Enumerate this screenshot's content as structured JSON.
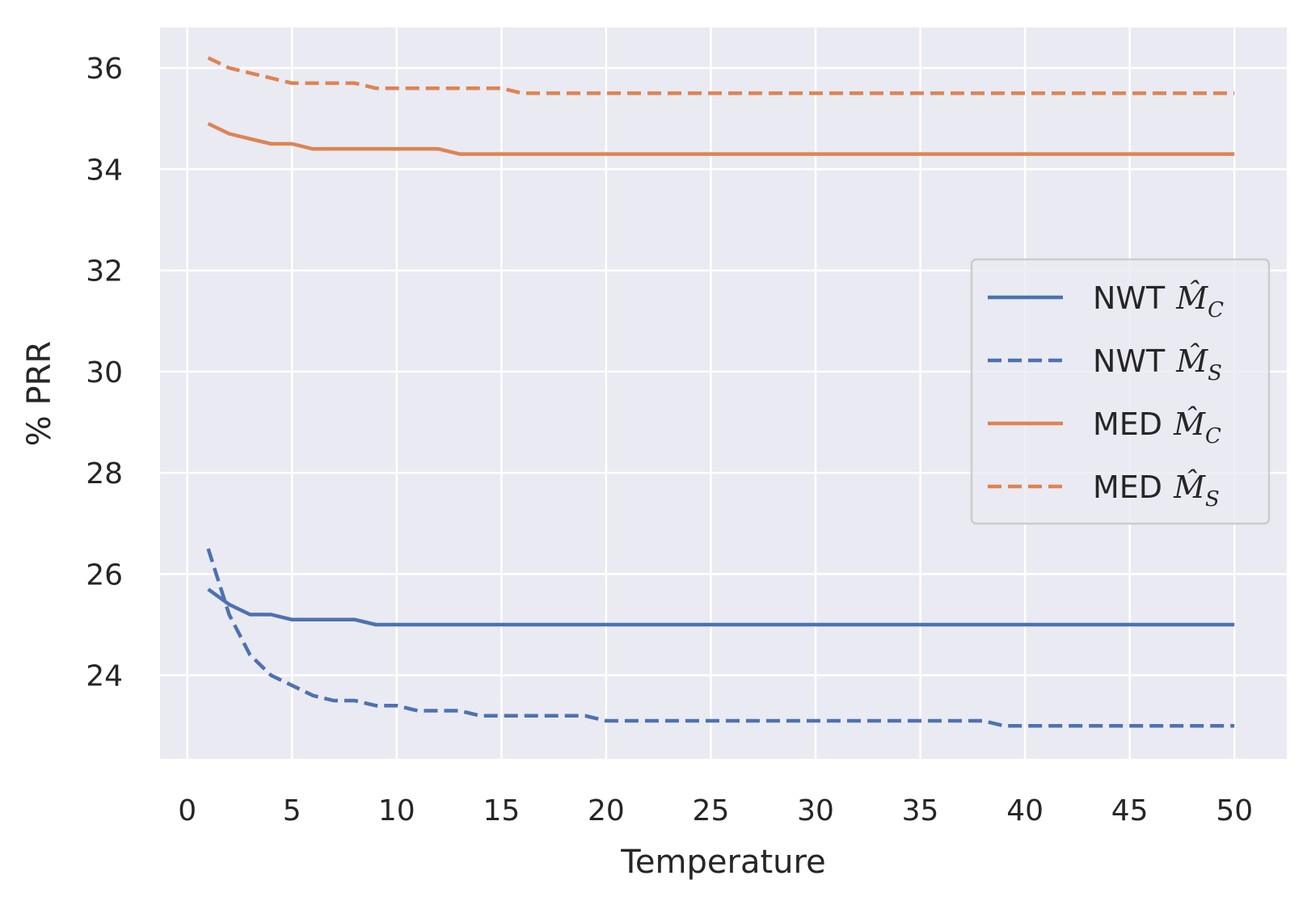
{
  "chart_data": {
    "type": "line",
    "title": "",
    "xlabel": "Temperature",
    "ylabel": "% PRR",
    "xlim": [
      -1.3,
      52.5
    ],
    "ylim": [
      22.35,
      36.8
    ],
    "xticks": [
      0,
      5,
      10,
      15,
      20,
      25,
      30,
      35,
      40,
      45,
      50
    ],
    "yticks": [
      24,
      26,
      28,
      30,
      32,
      34,
      36
    ],
    "grid": true,
    "legend_position": "center-right",
    "series": [
      {
        "name": "NWT",
        "subscript": "C",
        "color": "#4c72b0",
        "dash": "solid",
        "x": [
          1,
          2,
          3,
          4,
          5,
          6,
          7,
          8,
          9,
          10,
          12,
          15,
          20,
          25,
          30,
          35,
          40,
          45,
          50
        ],
        "y": [
          25.7,
          25.4,
          25.2,
          25.2,
          25.1,
          25.1,
          25.1,
          25.1,
          25.0,
          25.0,
          25.0,
          25.0,
          25.0,
          25.0,
          25.0,
          25.0,
          25.0,
          25.0,
          25.0
        ]
      },
      {
        "name": "NWT",
        "subscript": "S",
        "color": "#4c72b0",
        "dash": "dashed",
        "x": [
          1,
          2,
          3,
          4,
          5,
          6,
          7,
          8,
          9,
          10,
          11,
          12,
          13,
          14,
          15,
          16,
          17,
          18,
          19,
          20,
          25,
          30,
          35,
          38,
          39,
          40,
          45,
          50
        ],
        "y": [
          26.5,
          25.2,
          24.4,
          24.0,
          23.8,
          23.6,
          23.5,
          23.5,
          23.4,
          23.4,
          23.3,
          23.3,
          23.3,
          23.2,
          23.2,
          23.2,
          23.2,
          23.2,
          23.2,
          23.1,
          23.1,
          23.1,
          23.1,
          23.1,
          23.0,
          23.0,
          23.0,
          23.0
        ]
      },
      {
        "name": "MED",
        "subscript": "C",
        "color": "#dd8452",
        "dash": "solid",
        "x": [
          1,
          2,
          3,
          4,
          5,
          6,
          7,
          8,
          9,
          10,
          11,
          12,
          13,
          15,
          20,
          25,
          30,
          35,
          40,
          45,
          50
        ],
        "y": [
          34.9,
          34.7,
          34.6,
          34.5,
          34.5,
          34.4,
          34.4,
          34.4,
          34.4,
          34.4,
          34.4,
          34.4,
          34.3,
          34.3,
          34.3,
          34.3,
          34.3,
          34.3,
          34.3,
          34.3,
          34.3
        ]
      },
      {
        "name": "MED",
        "subscript": "S",
        "color": "#dd8452",
        "dash": "dashed",
        "x": [
          1,
          2,
          3,
          4,
          5,
          6,
          7,
          8,
          9,
          10,
          12,
          15,
          16,
          20,
          25,
          30,
          35,
          40,
          45,
          50
        ],
        "y": [
          36.2,
          36.0,
          35.9,
          35.8,
          35.7,
          35.7,
          35.7,
          35.7,
          35.6,
          35.6,
          35.6,
          35.6,
          35.5,
          35.5,
          35.5,
          35.5,
          35.5,
          35.5,
          35.5,
          35.5
        ]
      }
    ]
  }
}
